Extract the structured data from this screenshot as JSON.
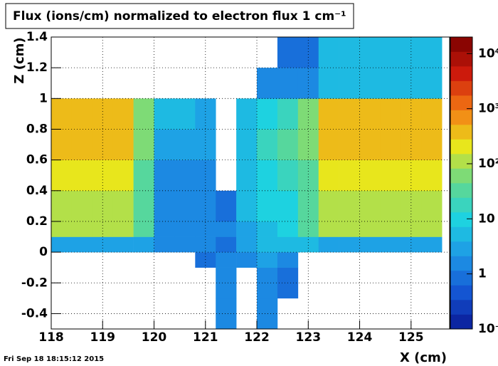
{
  "chart_data": {
    "type": "heatmap",
    "title": "Flux (ions/cm) normalized to electron flux 1 cm⁻¹",
    "x_label": "X (cm)",
    "y_label": "Z (cm)",
    "timestamp": "Fri Sep 18 18:15:12 2015",
    "xbins": [
      118,
      118.4,
      118.8,
      119.2,
      119.6,
      120,
      120.4,
      120.8,
      121.2,
      121.6,
      122,
      122.4,
      122.8,
      123.2,
      123.6,
      124,
      124.4,
      124.8,
      125.2,
      125.6
    ],
    "ybins": [
      -0.5,
      -0.3,
      -0.1,
      0,
      0.1,
      0.2,
      0.4,
      0.6,
      0.8,
      1.0,
      1.2,
      1.4
    ],
    "z": [
      [
        null,
        null,
        null,
        null,
        null,
        null,
        null,
        null,
        1.5,
        null,
        2,
        null,
        null,
        null,
        null,
        null,
        null,
        null,
        null
      ],
      [
        null,
        null,
        null,
        null,
        null,
        null,
        null,
        null,
        1.5,
        null,
        2,
        1,
        null,
        null,
        null,
        null,
        null,
        null,
        null
      ],
      [
        null,
        null,
        null,
        null,
        null,
        null,
        null,
        1,
        1.5,
        1.5,
        3,
        2,
        null,
        null,
        null,
        null,
        null,
        null,
        null
      ],
      [
        3,
        3,
        3,
        3,
        3,
        2,
        2,
        2,
        1,
        3,
        5,
        5,
        4,
        3,
        3,
        3,
        3,
        3,
        3
      ],
      [
        150,
        150,
        150,
        150,
        40,
        2,
        2,
        2,
        1.5,
        3,
        5,
        8,
        30,
        150,
        150,
        150,
        150,
        150,
        150
      ],
      [
        150,
        150,
        150,
        150,
        40,
        2,
        2,
        2,
        1,
        4,
        8,
        12,
        35,
        150,
        150,
        150,
        150,
        150,
        150
      ],
      [
        180,
        180,
        180,
        180,
        40,
        2,
        2,
        2,
        null,
        5,
        12,
        20,
        40,
        200,
        200,
        200,
        200,
        200,
        200
      ],
      [
        500,
        500,
        500,
        500,
        80,
        2.5,
        2.5,
        2.5,
        null,
        6,
        15,
        25,
        50,
        500,
        500,
        500,
        500,
        500,
        500
      ],
      [
        300,
        300,
        300,
        300,
        60,
        5,
        4,
        3,
        null,
        4,
        10,
        20,
        80,
        400,
        400,
        400,
        400,
        400,
        400
      ],
      [
        null,
        null,
        null,
        null,
        null,
        null,
        null,
        null,
        null,
        null,
        1.5,
        1.5,
        1.5,
        6,
        6,
        6,
        6,
        6,
        6
      ],
      [
        null,
        null,
        null,
        null,
        null,
        null,
        null,
        null,
        null,
        null,
        null,
        1,
        1,
        5,
        5,
        5,
        5,
        5,
        5
      ]
    ],
    "xlim": [
      118,
      125.75
    ],
    "xticks": [
      118,
      119,
      120,
      121,
      122,
      123,
      124,
      125
    ],
    "ylim": [
      -0.5,
      1.4
    ],
    "yticks": [
      -0.4,
      -0.2,
      0,
      0.2,
      0.4,
      0.6,
      0.8,
      1,
      1.2,
      1.4
    ],
    "zlim": [
      0.1,
      20000
    ],
    "zlog": true,
    "zticks": [
      {
        "value": 0.1,
        "label": "10⁻¹"
      },
      1,
      {
        "value": 10,
        "label": "10"
      },
      {
        "value": 100,
        "label": "10²"
      },
      {
        "value": 1000,
        "label": "10³"
      },
      {
        "value": 10000,
        "label": "10⁴"
      }
    ],
    "palette": [
      "#0a1a96",
      "#1455d2",
      "#1e96e6",
      "#1ed2e0",
      "#64d88c",
      "#e8e61c",
      "#f47a14",
      "#cc1a0c",
      "#7a0000"
    ],
    "grid": true
  }
}
